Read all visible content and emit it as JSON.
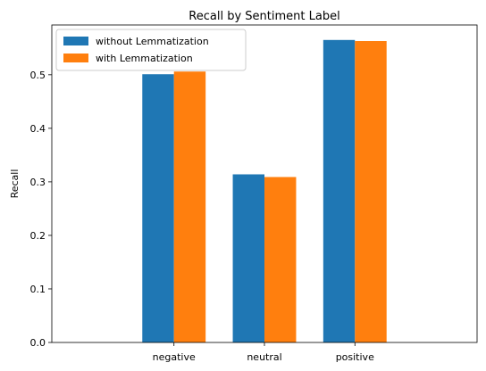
{
  "chart_data": {
    "type": "bar",
    "title": "Recall by Sentiment Label",
    "xlabel": "",
    "ylabel": "Recall",
    "categories": [
      "negative",
      "neutral",
      "positive"
    ],
    "series": [
      {
        "name": "without Lemmatization",
        "values": [
          0.501,
          0.314,
          0.565
        ],
        "color": "#1f77b4"
      },
      {
        "name": "with Lemmatization",
        "values": [
          0.506,
          0.309,
          0.563
        ],
        "color": "#ff7f0e"
      }
    ],
    "ylim": [
      0,
      0.593
    ],
    "yticks": [
      "0.0",
      "0.1",
      "0.2",
      "0.3",
      "0.4",
      "0.5"
    ],
    "grid": false,
    "legend": "top-left"
  }
}
